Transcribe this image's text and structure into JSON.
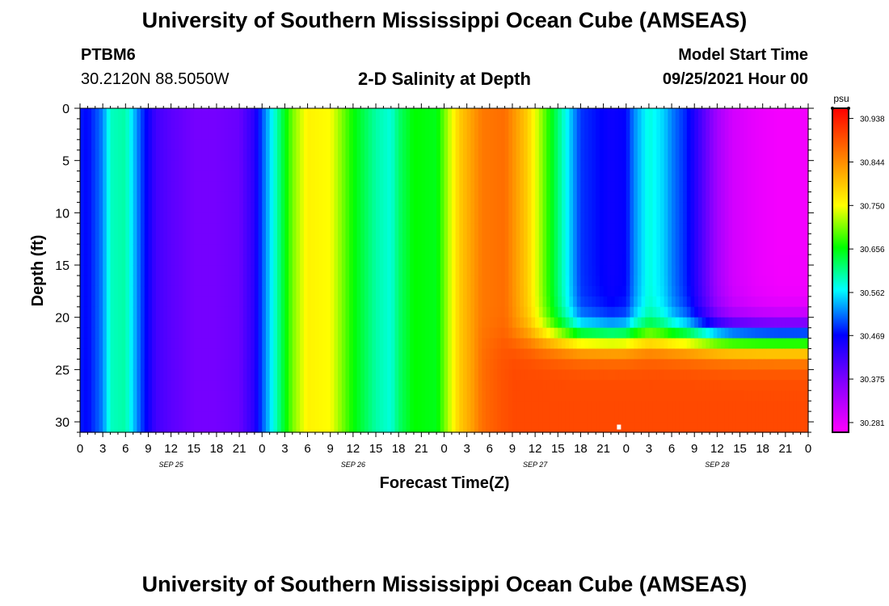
{
  "header": {
    "title": "University of Southern Mississippi Ocean Cube (AMSEAS)",
    "station": "PTBM6",
    "location": "30.2120N  88.5050W",
    "subtitle": "2-D Salinity at Depth",
    "model_start_label": "Model Start Time",
    "model_start_value": "09/25/2021 Hour 00"
  },
  "footer": {
    "title": "University of Southern Mississippi Ocean Cube (AMSEAS)"
  },
  "chart_data": {
    "type": "heatmap",
    "title": "2-D Salinity at Depth",
    "xlabel": "Forecast Time(Z)",
    "ylabel": "Depth (ft)",
    "x_unit": "hours since 09/25/2021 00Z",
    "xlim": [
      0,
      96
    ],
    "ylim": [
      0,
      31
    ],
    "y_inverted": true,
    "x_tick_labels": [
      "0",
      "3",
      "6",
      "9",
      "12",
      "15",
      "18",
      "21",
      "0",
      "3",
      "6",
      "9",
      "12",
      "15",
      "18",
      "21",
      "0",
      "3",
      "6",
      "9",
      "12",
      "15",
      "18",
      "21",
      "0",
      "3",
      "6",
      "9",
      "12",
      "15",
      "18",
      "21",
      "0"
    ],
    "day_labels": [
      "SEP 25",
      "SEP 26",
      "SEP 27",
      "SEP 28"
    ],
    "y_ticks": [
      0,
      5,
      10,
      15,
      20,
      25,
      30
    ],
    "colorbar": {
      "unit": "psu",
      "ticks": [
        30.938,
        30.844,
        30.75,
        30.656,
        30.562,
        30.469,
        30.375,
        30.281
      ],
      "range": [
        30.26,
        30.96
      ],
      "colors": [
        "#ff00ff",
        "#8800ff",
        "#0000ff",
        "#00ffff",
        "#00ff00",
        "#ffff00",
        "#ff8800",
        "#ff0000"
      ]
    },
    "surface_profile": {
      "hours": [
        0,
        1,
        3,
        4,
        6,
        8,
        10,
        12,
        15,
        18,
        21,
        23,
        24,
        26,
        28,
        30,
        33,
        36,
        39,
        41,
        42,
        44,
        47,
        50,
        53,
        56,
        59,
        62,
        66,
        70,
        72,
        73,
        75,
        77,
        78,
        80,
        82,
        84,
        86,
        89,
        92,
        96
      ],
      "salinity": [
        30.48,
        30.47,
        30.52,
        30.59,
        30.6,
        30.5,
        30.42,
        30.4,
        30.38,
        30.38,
        30.39,
        30.44,
        30.5,
        30.6,
        30.7,
        30.76,
        30.75,
        30.66,
        30.6,
        30.58,
        30.62,
        30.66,
        30.65,
        30.79,
        30.86,
        30.87,
        30.79,
        30.66,
        30.49,
        30.46,
        30.47,
        30.52,
        30.58,
        30.55,
        30.52,
        30.48,
        30.41,
        30.34,
        30.3,
        30.28,
        30.27,
        30.27
      ]
    },
    "bottom_layer_salinity": 30.9,
    "bottom_layer_start_hour": 52,
    "interface_depth_ft": 22,
    "max_marker": {
      "hour": 71,
      "depth": 30.5
    }
  }
}
